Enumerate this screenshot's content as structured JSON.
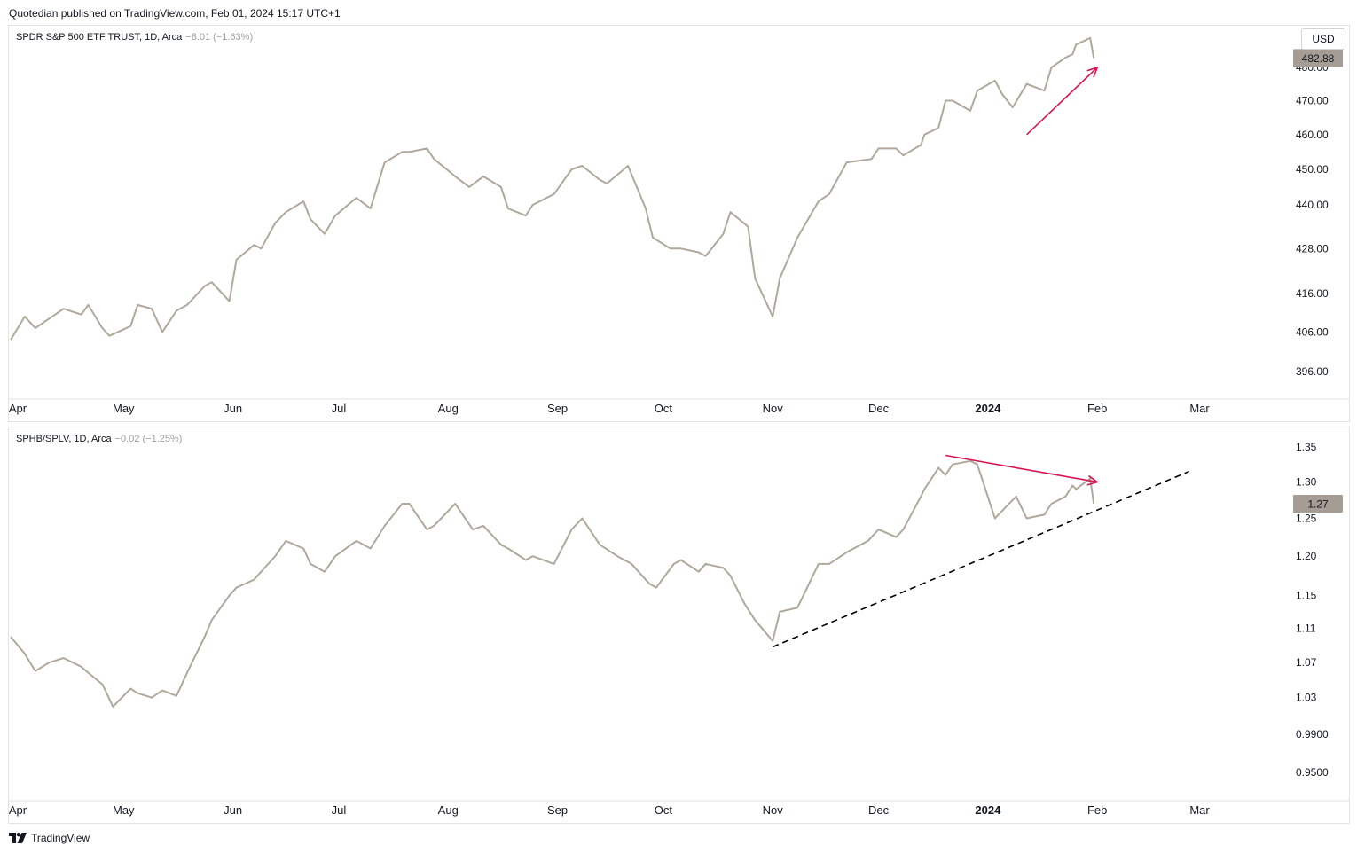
{
  "header": {
    "published": "Quotedian published on TradingView.com, Feb 01, 2024 15:17 UTC+1"
  },
  "footer": {
    "brand": "TradingView",
    "logo_icon": "tradingview-logo-icon"
  },
  "currency_button": "USD",
  "colors": {
    "price_line": "#b1a89c",
    "arrow": "#d6174f",
    "trendline": "#000000",
    "last_price_badge": "#a59d93",
    "grid_text": "#131722"
  },
  "chart_data": [
    {
      "type": "line",
      "title": "SPDR S&P 500 ETF TRUST, 1D, Arca",
      "change": "−8.01 (−1.63%)",
      "last_value": 482.88,
      "last_label": "482.88",
      "y_scale": "log",
      "ylim": [
        390,
        492
      ],
      "y_ticks": [
        {
          "value": 396,
          "label": "396.00"
        },
        {
          "value": 406,
          "label": "406.00"
        },
        {
          "value": 416,
          "label": "416.00"
        },
        {
          "value": 428,
          "label": "428.00"
        },
        {
          "value": 440,
          "label": "440.00"
        },
        {
          "value": 450,
          "label": "450.00"
        },
        {
          "value": 460,
          "label": "460.00"
        },
        {
          "value": 470,
          "label": "470.00"
        },
        {
          "value": 480,
          "label": "480.00"
        }
      ],
      "x_ticks": [
        {
          "date": "2023-04-01",
          "label": "Apr",
          "bold": false
        },
        {
          "date": "2023-05-01",
          "label": "May",
          "bold": false
        },
        {
          "date": "2023-06-01",
          "label": "Jun",
          "bold": false
        },
        {
          "date": "2023-07-01",
          "label": "Jul",
          "bold": false
        },
        {
          "date": "2023-08-01",
          "label": "Aug",
          "bold": false
        },
        {
          "date": "2023-09-01",
          "label": "Sep",
          "bold": false
        },
        {
          "date": "2023-10-01",
          "label": "Oct",
          "bold": false
        },
        {
          "date": "2023-11-01",
          "label": "Nov",
          "bold": false
        },
        {
          "date": "2023-12-01",
          "label": "Dec",
          "bold": false
        },
        {
          "date": "2024-01-01",
          "label": "2024",
          "bold": true
        },
        {
          "date": "2024-02-01",
          "label": "Feb",
          "bold": false
        },
        {
          "date": "2024-03-01",
          "label": "Mar",
          "bold": false
        }
      ],
      "xlim": [
        "2023-03-30",
        "2024-03-25"
      ],
      "series": [
        {
          "x": [
            "2023-03-30",
            "2023-04-03",
            "2023-04-06",
            "2023-04-10",
            "2023-04-14",
            "2023-04-19",
            "2023-04-21",
            "2023-04-25",
            "2023-04-27",
            "2023-05-03",
            "2023-05-05",
            "2023-05-09",
            "2023-05-12",
            "2023-05-16",
            "2023-05-19",
            "2023-05-24",
            "2023-05-26",
            "2023-05-31",
            "2023-06-02",
            "2023-06-07",
            "2023-06-09",
            "2023-06-13",
            "2023-06-16",
            "2023-06-21",
            "2023-06-23",
            "2023-06-27",
            "2023-06-30",
            "2023-07-06",
            "2023-07-10",
            "2023-07-14",
            "2023-07-19",
            "2023-07-21",
            "2023-07-26",
            "2023-07-28",
            "2023-08-03",
            "2023-08-07",
            "2023-08-11",
            "2023-08-16",
            "2023-08-18",
            "2023-08-23",
            "2023-08-25",
            "2023-08-31",
            "2023-09-05",
            "2023-09-08",
            "2023-09-13",
            "2023-09-15",
            "2023-09-21",
            "2023-09-26",
            "2023-09-28",
            "2023-10-03",
            "2023-10-06",
            "2023-10-11",
            "2023-10-13",
            "2023-10-18",
            "2023-10-20",
            "2023-10-25",
            "2023-10-27",
            "2023-11-01",
            "2023-11-03",
            "2023-11-08",
            "2023-11-14",
            "2023-11-17",
            "2023-11-22",
            "2023-11-29",
            "2023-12-01",
            "2023-12-06",
            "2023-12-08",
            "2023-12-13",
            "2023-12-14",
            "2023-12-18",
            "2023-12-20",
            "2023-12-22",
            "2023-12-27",
            "2023-12-29",
            "2024-01-03",
            "2024-01-05",
            "2024-01-08",
            "2024-01-12",
            "2024-01-17",
            "2024-01-19",
            "2024-01-23",
            "2024-01-25",
            "2024-01-26",
            "2024-01-30",
            "2024-01-31"
          ],
          "y": [
            404,
            410,
            407,
            409.5,
            412,
            410.5,
            413,
            407,
            405,
            407.5,
            413,
            412,
            406,
            411.5,
            413,
            418,
            419,
            414,
            425,
            429,
            428,
            435,
            438,
            441,
            436,
            432,
            437,
            442,
            439,
            452,
            455,
            455,
            456,
            453,
            448,
            445,
            448,
            445,
            439,
            437,
            440,
            443,
            450,
            451,
            447,
            446,
            451,
            439,
            431,
            428,
            428,
            427,
            426,
            432,
            438,
            434,
            420,
            410,
            420,
            431,
            441,
            443,
            452,
            453,
            456,
            456,
            454,
            457,
            460,
            462,
            470,
            470,
            467,
            473,
            476,
            472,
            468,
            475,
            473,
            480,
            483,
            484,
            487,
            489,
            482.88
          ]
        }
      ],
      "annotations": [
        {
          "type": "arrow",
          "from": {
            "x": "2024-01-12",
            "y": 460
          },
          "to": {
            "x": "2024-02-01",
            "y": 480
          },
          "color": "#d6174f"
        }
      ]
    },
    {
      "type": "line",
      "title": "SPHB/SPLV, 1D, Arca",
      "change": "−0.02 (−1.25%)",
      "last_value": 1.27,
      "last_label": "1.27",
      "y_scale": "log",
      "ylim": [
        0.925,
        1.375
      ],
      "y_ticks": [
        {
          "value": 0.95,
          "label": "0.9500"
        },
        {
          "value": 0.99,
          "label": "0.9900"
        },
        {
          "value": 1.03,
          "label": "1.03"
        },
        {
          "value": 1.07,
          "label": "1.07"
        },
        {
          "value": 1.11,
          "label": "1.11"
        },
        {
          "value": 1.15,
          "label": "1.15"
        },
        {
          "value": 1.2,
          "label": "1.20"
        },
        {
          "value": 1.25,
          "label": "1.25"
        },
        {
          "value": 1.3,
          "label": "1.30"
        },
        {
          "value": 1.35,
          "label": "1.35"
        }
      ],
      "x_ticks": [
        {
          "date": "2023-04-01",
          "label": "Apr",
          "bold": false
        },
        {
          "date": "2023-05-01",
          "label": "May",
          "bold": false
        },
        {
          "date": "2023-06-01",
          "label": "Jun",
          "bold": false
        },
        {
          "date": "2023-07-01",
          "label": "Jul",
          "bold": false
        },
        {
          "date": "2023-08-01",
          "label": "Aug",
          "bold": false
        },
        {
          "date": "2023-09-01",
          "label": "Sep",
          "bold": false
        },
        {
          "date": "2023-10-01",
          "label": "Oct",
          "bold": false
        },
        {
          "date": "2023-11-01",
          "label": "Nov",
          "bold": false
        },
        {
          "date": "2023-12-01",
          "label": "Dec",
          "bold": false
        },
        {
          "date": "2024-01-01",
          "label": "2024",
          "bold": true
        },
        {
          "date": "2024-02-01",
          "label": "Feb",
          "bold": false
        },
        {
          "date": "2024-03-01",
          "label": "Mar",
          "bold": false
        }
      ],
      "xlim": [
        "2023-03-30",
        "2024-03-25"
      ],
      "series": [
        {
          "x": [
            "2023-03-30",
            "2023-04-03",
            "2023-04-06",
            "2023-04-10",
            "2023-04-14",
            "2023-04-19",
            "2023-04-21",
            "2023-04-25",
            "2023-04-28",
            "2023-05-03",
            "2023-05-05",
            "2023-05-09",
            "2023-05-12",
            "2023-05-16",
            "2023-05-19",
            "2023-05-24",
            "2023-05-26",
            "2023-05-31",
            "2023-06-02",
            "2023-06-07",
            "2023-06-09",
            "2023-06-13",
            "2023-06-16",
            "2023-06-21",
            "2023-06-23",
            "2023-06-27",
            "2023-06-30",
            "2023-07-06",
            "2023-07-10",
            "2023-07-14",
            "2023-07-19",
            "2023-07-21",
            "2023-07-26",
            "2023-07-28",
            "2023-08-03",
            "2023-08-08",
            "2023-08-11",
            "2023-08-16",
            "2023-08-18",
            "2023-08-23",
            "2023-08-25",
            "2023-08-31",
            "2023-09-05",
            "2023-09-08",
            "2023-09-13",
            "2023-09-18",
            "2023-09-22",
            "2023-09-27",
            "2023-09-29",
            "2023-10-04",
            "2023-10-06",
            "2023-10-11",
            "2023-10-13",
            "2023-10-18",
            "2023-10-20",
            "2023-10-24",
            "2023-10-27",
            "2023-11-01",
            "2023-11-03",
            "2023-11-08",
            "2023-11-14",
            "2023-11-17",
            "2023-11-22",
            "2023-11-28",
            "2023-12-01",
            "2023-12-06",
            "2023-12-08",
            "2023-12-13",
            "2023-12-14",
            "2023-12-18",
            "2023-12-20",
            "2023-12-22",
            "2023-12-27",
            "2023-12-29",
            "2024-01-03",
            "2024-01-05",
            "2024-01-09",
            "2024-01-12",
            "2024-01-17",
            "2024-01-19",
            "2024-01-23",
            "2024-01-25",
            "2024-01-26",
            "2024-01-30",
            "2024-01-31"
          ],
          "y": [
            1.1,
            1.08,
            1.06,
            1.07,
            1.075,
            1.065,
            1.058,
            1.045,
            1.02,
            1.04,
            1.035,
            1.03,
            1.038,
            1.032,
            1.058,
            1.1,
            1.12,
            1.15,
            1.16,
            1.17,
            1.18,
            1.2,
            1.22,
            1.21,
            1.19,
            1.18,
            1.2,
            1.22,
            1.21,
            1.24,
            1.27,
            1.27,
            1.235,
            1.24,
            1.27,
            1.235,
            1.24,
            1.215,
            1.21,
            1.195,
            1.2,
            1.19,
            1.235,
            1.25,
            1.215,
            1.2,
            1.19,
            1.165,
            1.16,
            1.19,
            1.195,
            1.18,
            1.19,
            1.185,
            1.175,
            1.14,
            1.12,
            1.095,
            1.13,
            1.135,
            1.19,
            1.19,
            1.205,
            1.22,
            1.235,
            1.225,
            1.235,
            1.28,
            1.29,
            1.32,
            1.31,
            1.325,
            1.33,
            1.325,
            1.25,
            1.26,
            1.28,
            1.25,
            1.255,
            1.27,
            1.28,
            1.295,
            1.29,
            1.305,
            1.27
          ]
        }
      ],
      "annotations": [
        {
          "type": "arrow",
          "from": {
            "x": "2023-12-20",
            "y": 1.338
          },
          "to": {
            "x": "2024-02-01",
            "y": 1.3
          },
          "color": "#d6174f"
        },
        {
          "type": "dashed-trendline",
          "from": {
            "x": "2023-11-01",
            "y": 1.088
          },
          "to": {
            "x": "2024-02-27",
            "y": 1.315
          },
          "color": "#000000"
        }
      ]
    }
  ]
}
